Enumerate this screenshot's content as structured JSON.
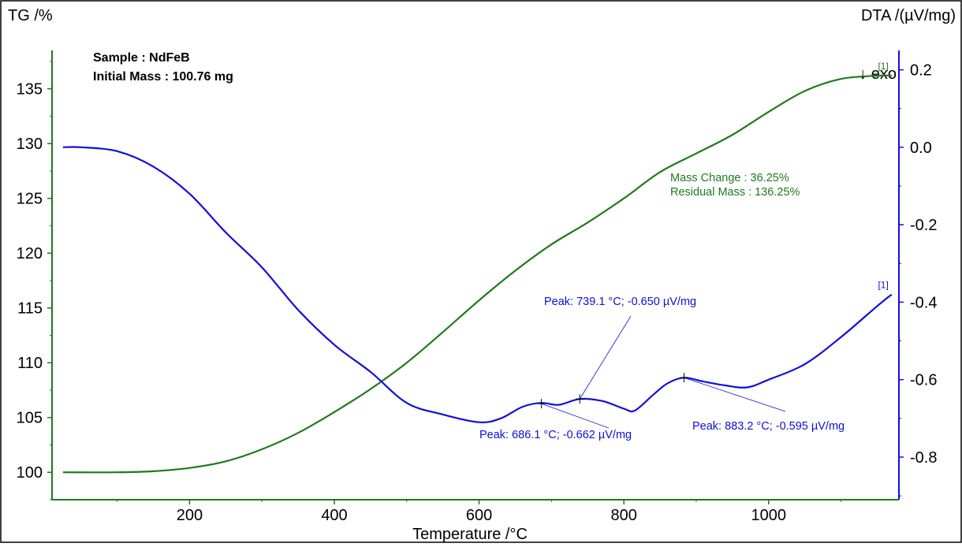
{
  "chart_data": {
    "type": "line",
    "xlabel": "Temperature /°C",
    "y_left_label": "TG /%",
    "y_right_label": "DTA /(µV/mg)",
    "exo_label": "↓ exo",
    "x_ticks": [
      "200",
      "400",
      "600",
      "800",
      "1000"
    ],
    "y_left_ticks": [
      "100",
      "105",
      "110",
      "115",
      "120",
      "125",
      "130",
      "135"
    ],
    "y_right_ticks": [
      "0.2",
      "0.0",
      "-0.2",
      "-0.4",
      "-0.6",
      "-0.8"
    ],
    "xlim": [
      10,
      1180
    ],
    "ylim_left": [
      97.5,
      138.5
    ],
    "ylim_right": [
      -0.91,
      0.25
    ],
    "sample_line": "Sample : NdFeB",
    "mass_line": "Initial Mass : 100.76 mg",
    "series": [
      {
        "key": "tg",
        "axis": "left",
        "color": "#1e7b1e",
        "end_marker": "[1]",
        "x": [
          25,
          100,
          150,
          200,
          250,
          300,
          350,
          400,
          450,
          500,
          550,
          600,
          650,
          700,
          750,
          800,
          850,
          900,
          950,
          1000,
          1050,
          1100,
          1150,
          1170
        ],
        "y": [
          100.0,
          100.0,
          100.1,
          100.4,
          101.0,
          102.1,
          103.6,
          105.5,
          107.6,
          110.0,
          112.8,
          115.7,
          118.4,
          120.8,
          122.8,
          125.0,
          127.4,
          129.1,
          130.8,
          132.9,
          134.8,
          135.9,
          136.2,
          136.2
        ]
      },
      {
        "key": "dta",
        "axis": "right",
        "color": "#1010d8",
        "end_marker": "[1]",
        "x": [
          25,
          50,
          100,
          150,
          200,
          250,
          300,
          350,
          400,
          450,
          500,
          550,
          600,
          630,
          660,
          686,
          710,
          739,
          770,
          800,
          815,
          840,
          860,
          883,
          910,
          940,
          970,
          1000,
          1050,
          1100,
          1150,
          1170
        ],
        "y": [
          0.0,
          0.0,
          -0.01,
          -0.05,
          -0.12,
          -0.22,
          -0.31,
          -0.42,
          -0.51,
          -0.58,
          -0.66,
          -0.69,
          -0.71,
          -0.7,
          -0.67,
          -0.66,
          -0.665,
          -0.65,
          -0.655,
          -0.675,
          -0.68,
          -0.64,
          -0.61,
          -0.595,
          -0.605,
          -0.615,
          -0.62,
          -0.6,
          -0.56,
          -0.49,
          -0.41,
          -0.38
        ]
      }
    ],
    "annotations": {
      "tg_result": {
        "color": "#1e7b1e",
        "lines": [
          "Mass Change : 36.25%",
          "Residual Mass : 136.25%"
        ]
      },
      "peaks": [
        {
          "x": 686.1,
          "y": -0.662,
          "text": "Peak: 686.1 °C; -0.662 µV/mg"
        },
        {
          "x": 739.1,
          "y": -0.65,
          "text": "Peak: 739.1 °C; -0.650 µV/mg"
        },
        {
          "x": 883.2,
          "y": -0.595,
          "text": "Peak: 883.2 °C; -0.595 µV/mg"
        }
      ]
    },
    "grid": false,
    "legend": "none"
  }
}
